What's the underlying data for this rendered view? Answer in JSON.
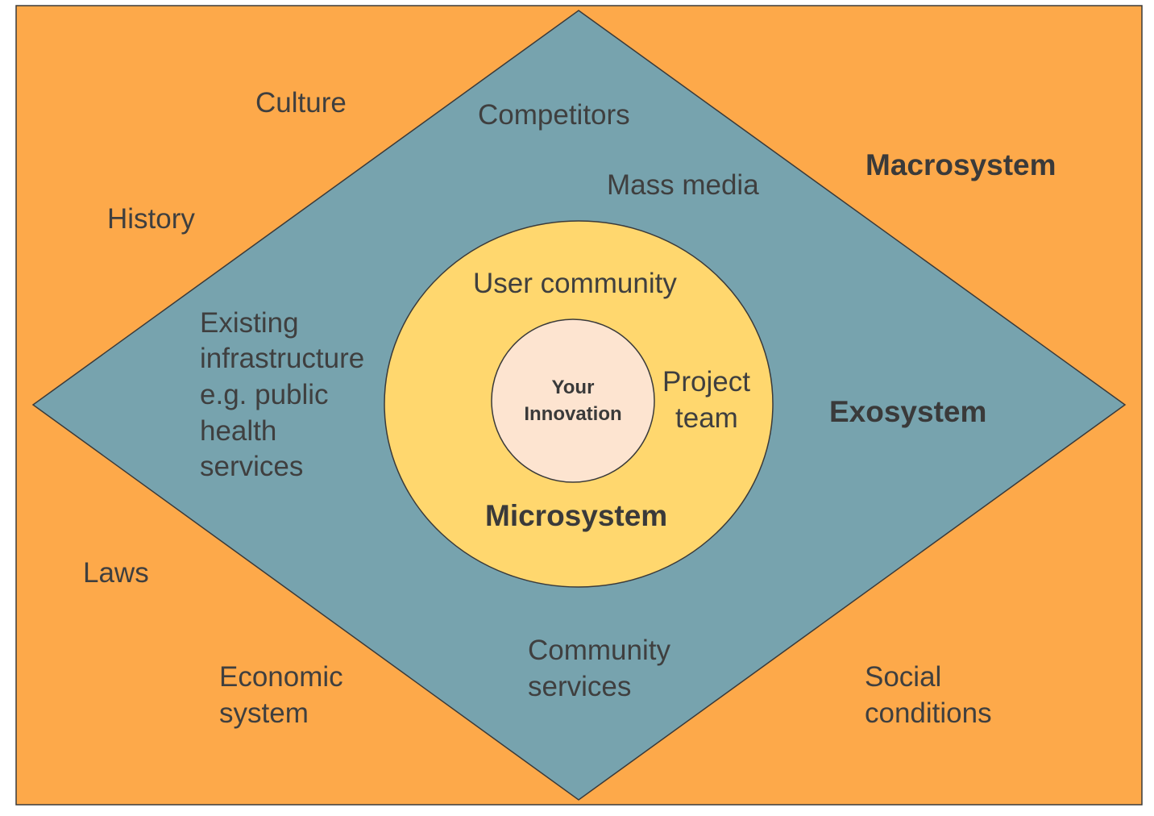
{
  "colors": {
    "macrosystem": "#fda94a",
    "exosystem": "#77a3ae",
    "microsystem": "#ffd76e",
    "core": "#fde4d0",
    "text": "#3f3f3f",
    "stroke": "#3a3a3a"
  },
  "core": {
    "line1": "Your",
    "line2": "Innovation"
  },
  "microsystem": {
    "title": "Microsystem",
    "user_community": "User community",
    "project_team_line1": "Project",
    "project_team_line2": "team"
  },
  "exosystem": {
    "title": "Exosystem",
    "competitors": "Competitors",
    "mass_media": "Mass media",
    "infrastructure_line1": "Existing",
    "infrastructure_line2": "infrastructure",
    "infrastructure_line3": "e.g. public",
    "infrastructure_line4": "health",
    "infrastructure_line5": "services",
    "community_services_line1": "Community",
    "community_services_line2": "services"
  },
  "macrosystem": {
    "title": "Macrosystem",
    "culture": "Culture",
    "history": "History",
    "laws": "Laws",
    "economic_line1": "Economic",
    "economic_line2": "system",
    "social_line1": "Social",
    "social_line2": "conditions"
  }
}
